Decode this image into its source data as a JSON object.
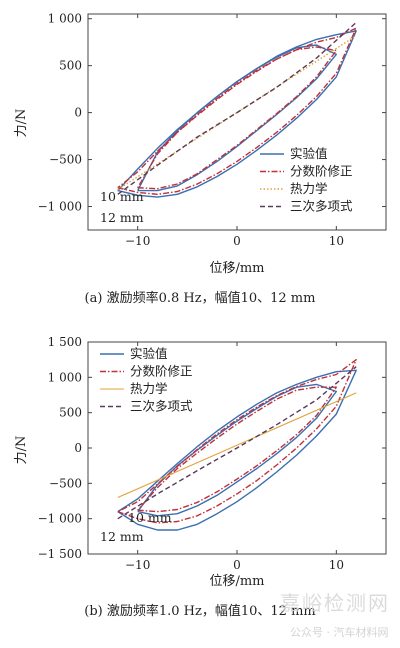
{
  "chart_data": [
    {
      "type": "line",
      "caption": "(a) 激励频率0.8 Hz，幅值10、12 mm",
      "xlabel": "位移/mm",
      "ylabel": "力/N",
      "xlim": [
        -15,
        15
      ],
      "ylim": [
        -1250,
        1050
      ],
      "xticks": [
        -10,
        0,
        10
      ],
      "xtick_labels": [
        "−10",
        "0",
        "10"
      ],
      "yticks": [
        1000,
        500,
        0,
        -500,
        -1000
      ],
      "ytick_labels": [
        "1 000",
        "500",
        "0",
        "−500",
        "−1 000"
      ],
      "legend_position": "bottom-right",
      "annotations": [
        "10 mm",
        "12 mm"
      ],
      "series": [
        {
          "name": "实验值",
          "color": "#3a6fb0",
          "dash": "solid",
          "loops": [
            {
              "amp": 10,
              "x": [
                -10,
                -8,
                -6,
                -4,
                -2,
                0,
                2,
                4,
                6,
                8,
                10,
                8,
                6,
                4,
                2,
                0,
                -2,
                -4,
                -6,
                -8,
                -10
              ],
              "y": [
                -830,
                -830,
                -780,
                -660,
                -520,
                -360,
                -190,
                -20,
                160,
                360,
                620,
                720,
                690,
                590,
                470,
                330,
                170,
                0,
                -190,
                -420,
                -830
              ]
            },
            {
              "amp": 12,
              "x": [
                -12,
                -10,
                -8,
                -6,
                -4,
                -2,
                0,
                2,
                4,
                6,
                8,
                10,
                12,
                10,
                8,
                6,
                4,
                2,
                0,
                -2,
                -4,
                -6,
                -8,
                -10,
                -12
              ],
              "y": [
                -830,
                -880,
                -900,
                -870,
                -790,
                -680,
                -550,
                -400,
                -240,
                -60,
                140,
                380,
                870,
                830,
                780,
                700,
                600,
                470,
                330,
                170,
                0,
                -180,
                -380,
                -600,
                -830
              ]
            }
          ]
        },
        {
          "name": "分数阶修正",
          "color": "#c0303a",
          "dash": "dashdot",
          "loops": [
            {
              "amp": 10,
              "x": [
                -10,
                -8,
                -6,
                -4,
                -2,
                0,
                2,
                4,
                6,
                8,
                10,
                8,
                6,
                4,
                2,
                0,
                -2,
                -4,
                -6,
                -8,
                -10
              ],
              "y": [
                -800,
                -810,
                -760,
                -650,
                -500,
                -350,
                -180,
                -10,
                170,
                380,
                660,
                700,
                670,
                570,
                450,
                310,
                150,
                -20,
                -210,
                -440,
                -800
              ]
            },
            {
              "amp": 12,
              "x": [
                -12,
                -10,
                -8,
                -6,
                -4,
                -2,
                0,
                2,
                4,
                6,
                8,
                10,
                12,
                10,
                8,
                6,
                4,
                2,
                0,
                -2,
                -4,
                -6,
                -8,
                -10,
                -12
              ],
              "y": [
                -800,
                -850,
                -870,
                -840,
                -760,
                -650,
                -520,
                -370,
                -210,
                -30,
                170,
                420,
                900,
                800,
                750,
                670,
                570,
                440,
                300,
                140,
                -30,
                -210,
                -410,
                -630,
                -800
              ]
            }
          ]
        },
        {
          "name": "热力学",
          "color": "#e0a23c",
          "dash": "dotted",
          "loops": [
            {
              "amp": 12,
              "x": [
                -12,
                12
              ],
              "y": [
                -820,
                820
              ]
            }
          ]
        },
        {
          "name": "三次多项式",
          "color": "#5a3a5a",
          "dash": "dashed",
          "loops": [
            {
              "amp": 12,
              "x": [
                -12,
                -8,
                -4,
                0,
                4,
                8,
                12
              ],
              "y": [
                -870,
                -560,
                -260,
                0,
                270,
                580,
                960
              ]
            }
          ]
        }
      ]
    },
    {
      "type": "line",
      "caption": "(b) 激励频率1.0 Hz，幅值10、12 mm",
      "xlabel": "位移/mm",
      "ylabel": "力/N",
      "xlim": [
        -15,
        15
      ],
      "ylim": [
        -1500,
        1500
      ],
      "xticks": [
        -10,
        0,
        10
      ],
      "xtick_labels": [
        "−10",
        "0",
        "10"
      ],
      "yticks": [
        1500,
        1000,
        500,
        0,
        -500,
        -1000,
        -1500
      ],
      "ytick_labels": [
        "1 500",
        "1 000",
        "500",
        "0",
        "−500",
        "−1 000",
        "−1 500"
      ],
      "legend_position": "top-left",
      "annotations": [
        "10 mm",
        "12 mm"
      ],
      "series": [
        {
          "name": "实验值",
          "color": "#3a6fb0",
          "dash": "solid",
          "loops": [
            {
              "amp": 10,
              "x": [
                -10,
                -8,
                -6,
                -4,
                -2,
                0,
                2,
                4,
                6,
                8,
                10,
                8,
                6,
                4,
                2,
                0,
                -2,
                -4,
                -6,
                -8,
                -10
              ],
              "y": [
                -900,
                -960,
                -930,
                -820,
                -670,
                -480,
                -290,
                -80,
                150,
                420,
                800,
                900,
                860,
                730,
                560,
                380,
                180,
                -30,
                -250,
                -520,
                -900
              ]
            },
            {
              "amp": 12,
              "x": [
                -12,
                -10,
                -8,
                -6,
                -4,
                -2,
                0,
                2,
                4,
                6,
                8,
                10,
                12,
                10,
                8,
                6,
                4,
                2,
                0,
                -2,
                -4,
                -6,
                -8,
                -10,
                -12
              ],
              "y": [
                -900,
                -1080,
                -1160,
                -1160,
                -1080,
                -930,
                -760,
                -560,
                -340,
                -100,
                170,
                480,
                1100,
                1080,
                1000,
                900,
                780,
                620,
                440,
                240,
                20,
                -220,
                -470,
                -720,
                -900
              ]
            }
          ]
        },
        {
          "name": "分数阶修正",
          "color": "#c0303a",
          "dash": "dashdot",
          "loops": [
            {
              "amp": 10,
              "x": [
                -10,
                -8,
                -6,
                -4,
                -2,
                0,
                2,
                4,
                6,
                8,
                10,
                8,
                6,
                4,
                2,
                0,
                -2,
                -4,
                -6,
                -8,
                -10
              ],
              "y": [
                -880,
                -900,
                -870,
                -770,
                -620,
                -440,
                -250,
                -40,
                190,
                460,
                860,
                860,
                820,
                690,
                520,
                340,
                140,
                -70,
                -290,
                -560,
                -880
              ]
            },
            {
              "amp": 12,
              "x": [
                -12,
                -10,
                -8,
                -6,
                -4,
                -2,
                0,
                2,
                4,
                6,
                8,
                10,
                12,
                10,
                8,
                6,
                4,
                2,
                0,
                -2,
                -4,
                -6,
                -8,
                -10,
                -12
              ],
              "y": [
                -900,
                -1000,
                -1060,
                -1040,
                -960,
                -820,
                -650,
                -460,
                -240,
                0,
                270,
                590,
                1250,
                1040,
                970,
                870,
                740,
                580,
                400,
                200,
                -20,
                -260,
                -510,
                -760,
                -900
              ]
            }
          ]
        },
        {
          "name": "热力学",
          "color": "#e0a23c",
          "dash": "solid-thin",
          "loops": [
            {
              "amp": 12,
              "x": [
                -12,
                12
              ],
              "y": [
                -700,
                780
              ]
            }
          ]
        },
        {
          "name": "三次多项式",
          "color": "#5a3a5a",
          "dash": "dashed",
          "loops": [
            {
              "amp": 12,
              "x": [
                -12,
                -8,
                -4,
                0,
                4,
                8,
                12
              ],
              "y": [
                -1000,
                -650,
                -320,
                0,
                330,
                680,
                1150
              ]
            }
          ]
        }
      ]
    }
  ],
  "watermark": {
    "text": "嘉峪检测网",
    "sub": "公众号 · 汽车材料网",
    "color": "#cccccc"
  }
}
